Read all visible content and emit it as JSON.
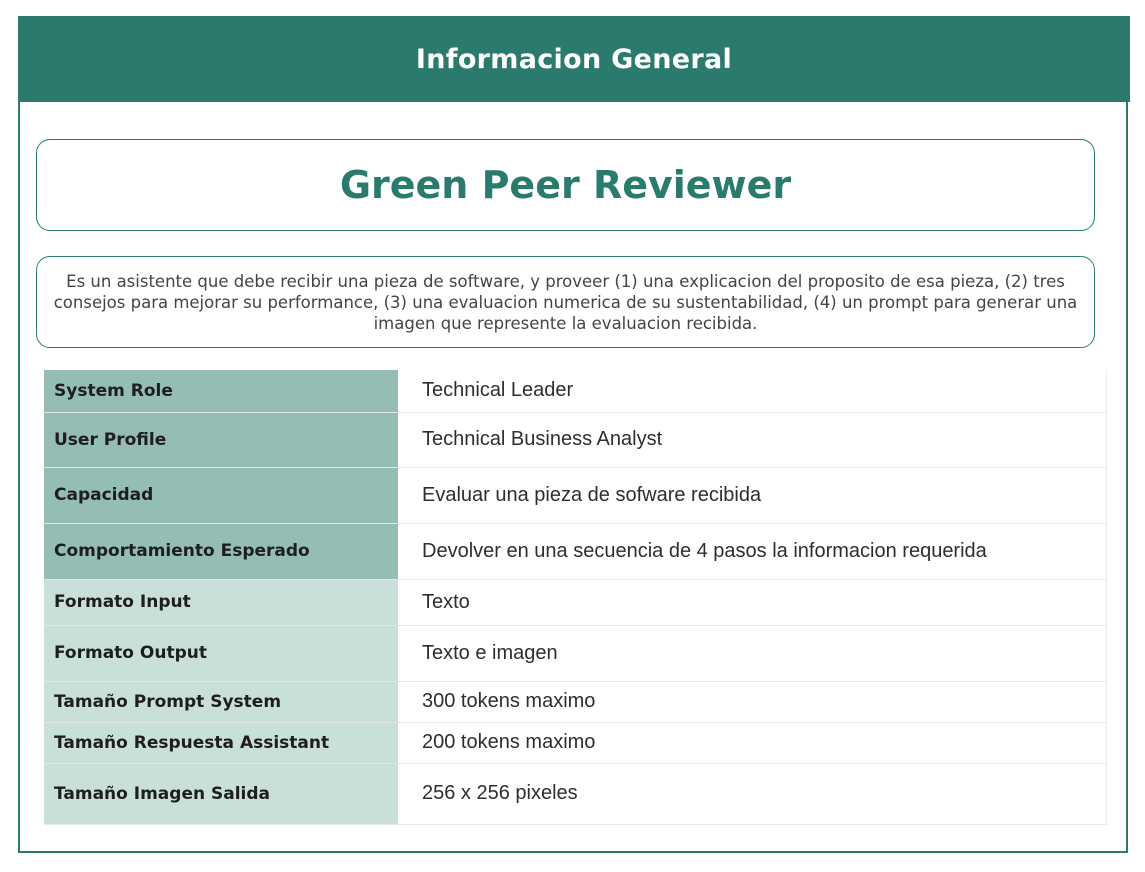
{
  "header": {
    "title": "Informacion General"
  },
  "assistant": {
    "name": "Green Peer Reviewer",
    "description": "Es un asistente que debe recibir una pieza de software, y proveer (1) una explicacion del proposito de esa pieza, (2) tres consejos para mejorar su performance, (3) una evaluacion numerica de su sustentabilidad, (4) un prompt para generar una imagen que represente la evaluacion recibida."
  },
  "rows": [
    {
      "label": "System Role",
      "value": "Technical Leader"
    },
    {
      "label": "User Profile",
      "value": "Technical Business Analyst"
    },
    {
      "label": "Capacidad",
      "value": "Evaluar una pieza de sofware recibida"
    },
    {
      "label": "Comportamiento Esperado",
      "value": "Devolver en una secuencia de 4 pasos la informacion requerida"
    },
    {
      "label": "Formato Input",
      "value": "Texto"
    },
    {
      "label": "Formato Output",
      "value": "Texto e imagen"
    },
    {
      "label": "Tamaño Prompt System",
      "value": "300 tokens maximo"
    },
    {
      "label": "Tamaño Respuesta Assistant",
      "value": "200 tokens maximo"
    },
    {
      "label": "Tamaño Imagen Salida",
      "value": "256 x 256 pixeles"
    }
  ],
  "colors": {
    "primary": "#2a7b6d",
    "label_dark": "#94bdb3",
    "label_light": "#c9e0da"
  }
}
